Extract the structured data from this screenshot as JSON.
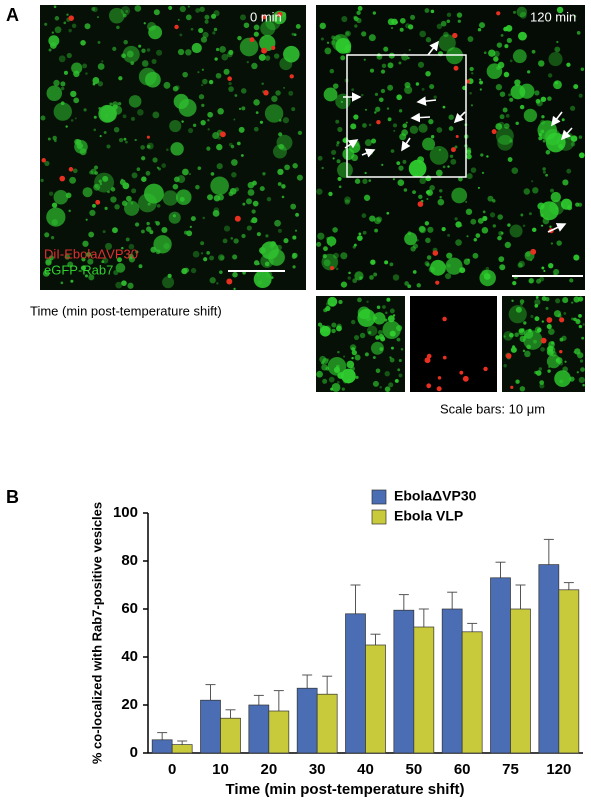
{
  "panel_a": {
    "label": "A",
    "left_time": "0 min",
    "right_time": "120 min",
    "legend_red": "DiI-EbolaΔVP30",
    "legend_green": "eGFP-Rab7",
    "caption_left": "Time (min post-temperature shift)",
    "scale_note": "Scale bars: 10 μm"
  },
  "panel_b_label": "B",
  "chart_data": {
    "type": "bar",
    "y_label": "% co-localized with Rab7-positive vesicles",
    "x_label": "Time (min post-temperature shift)",
    "categories": [
      "0",
      "10",
      "20",
      "30",
      "40",
      "50",
      "60",
      "75",
      "120"
    ],
    "series": [
      {
        "name": "EbolaΔVP30",
        "color": "#4a6db3",
        "values": [
          5.5,
          22,
          20,
          27,
          58,
          59.5,
          60,
          73,
          78.5
        ],
        "errors": [
          3,
          6.5,
          4,
          5.5,
          12,
          6.5,
          7,
          6.5,
          10.5
        ]
      },
      {
        "name": "Ebola VLP",
        "color": "#c9c93c",
        "values": [
          3.5,
          14.5,
          17.5,
          24.5,
          45,
          52.5,
          50.5,
          60,
          68
        ],
        "errors": [
          1.5,
          3.5,
          8.5,
          7.5,
          4.5,
          7.5,
          3.5,
          10,
          3
        ]
      }
    ],
    "ylim": [
      0,
      100
    ],
    "yticks": [
      0,
      20,
      40,
      60,
      80,
      100
    ],
    "legend": "upper right"
  }
}
